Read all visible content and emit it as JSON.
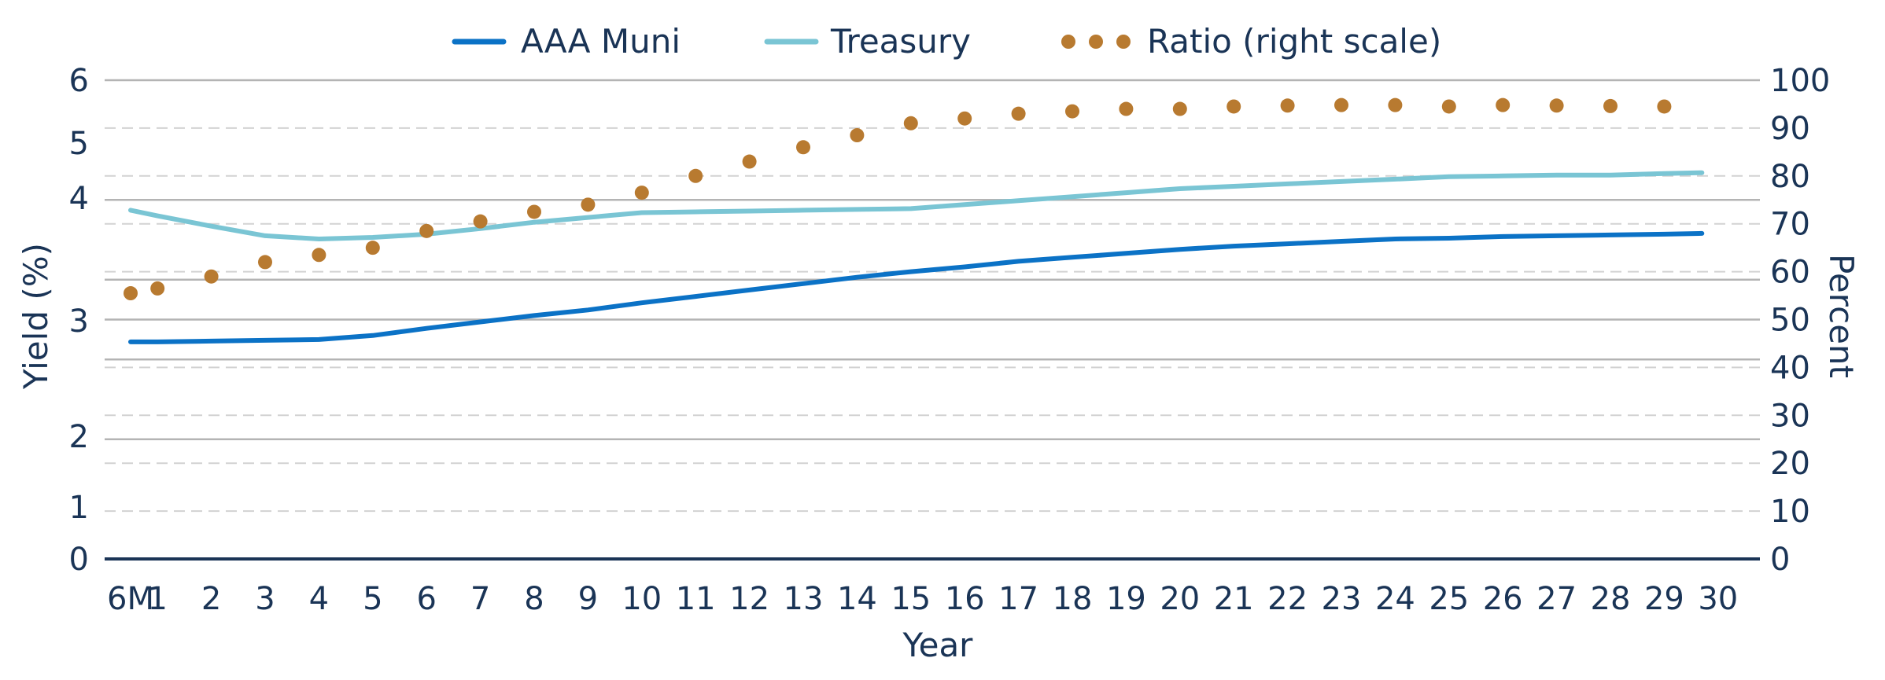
{
  "chart_data": {
    "type": "line",
    "xlabel": "Year",
    "ylabel_left": "Yield (%)",
    "ylabel_right": "Percent",
    "x_ticks": [
      "6M",
      "1",
      "2",
      "3",
      "4",
      "5",
      "6",
      "7",
      "8",
      "9",
      "10",
      "11",
      "12",
      "13",
      "14",
      "15",
      "16",
      "17",
      "18",
      "19",
      "20",
      "21",
      "22",
      "23",
      "24",
      "25",
      "26",
      "27",
      "28",
      "29",
      "30"
    ],
    "y_left": {
      "ticks": [
        "0",
        "1",
        "2",
        "3",
        "4",
        "5",
        "6"
      ],
      "range": [
        0,
        6
      ],
      "gridlines": [
        1.5,
        2.5,
        3.0,
        3.5,
        4.5,
        6.0
      ]
    },
    "y_right": {
      "ticks": [
        "0",
        "10",
        "20",
        "30",
        "40",
        "50",
        "60",
        "70",
        "80",
        "90",
        "100"
      ],
      "range": [
        0,
        100
      ]
    },
    "legend": {
      "position": "top-center",
      "entries": [
        "AAA Muni",
        "Treasury",
        "Ratio (right scale)"
      ]
    },
    "series": [
      {
        "name": "AAA Muni",
        "axis": "left",
        "style": "line",
        "color": "#0b72c6",
        "x": [
          0.5,
          1,
          2,
          3,
          4,
          5,
          6,
          7,
          8,
          9,
          10,
          11,
          12,
          13,
          14,
          15,
          16,
          17,
          18,
          19,
          20,
          21,
          22,
          23,
          24,
          25,
          26,
          27,
          28,
          29,
          29.7
        ],
        "values": [
          2.72,
          2.72,
          2.73,
          2.74,
          2.75,
          2.8,
          2.89,
          2.97,
          3.05,
          3.12,
          3.21,
          3.29,
          3.37,
          3.45,
          3.53,
          3.6,
          3.66,
          3.73,
          3.78,
          3.83,
          3.88,
          3.92,
          3.95,
          3.98,
          4.01,
          4.02,
          4.04,
          4.05,
          4.06,
          4.07,
          4.08
        ]
      },
      {
        "name": "Treasury",
        "axis": "left",
        "style": "line",
        "color": "#7ac5d4",
        "x": [
          0.5,
          1,
          2,
          3,
          4,
          5,
          6,
          7,
          8,
          9,
          10,
          11,
          12,
          13,
          14,
          15,
          16,
          17,
          18,
          19,
          20,
          21,
          22,
          23,
          24,
          25,
          26,
          27,
          28,
          29,
          29.7
        ],
        "values": [
          4.37,
          4.3,
          4.17,
          4.05,
          4.01,
          4.03,
          4.07,
          4.14,
          4.22,
          4.28,
          4.34,
          4.35,
          4.36,
          4.37,
          4.38,
          4.39,
          4.44,
          4.49,
          4.54,
          4.59,
          4.64,
          4.67,
          4.7,
          4.73,
          4.76,
          4.79,
          4.8,
          4.81,
          4.81,
          4.83,
          4.84
        ]
      },
      {
        "name": "Ratio (right scale)",
        "axis": "right",
        "style": "dots",
        "color": "#b87a30",
        "x": [
          0.5,
          1,
          2,
          3,
          4,
          5,
          6,
          7,
          8,
          9,
          10,
          11,
          12,
          13,
          14,
          15,
          16,
          17,
          18,
          19,
          20,
          21,
          22,
          23,
          24,
          25,
          26,
          27,
          28,
          29
        ],
        "values": [
          55.5,
          56.5,
          59,
          62,
          63.5,
          65,
          68.5,
          70.5,
          72.5,
          74,
          76.5,
          80,
          83,
          86,
          88.5,
          91,
          92,
          93,
          93.5,
          94,
          94,
          94.5,
          94.7,
          94.8,
          94.8,
          94.5,
          94.8,
          94.7,
          94.6,
          94.5
        ]
      }
    ]
  }
}
